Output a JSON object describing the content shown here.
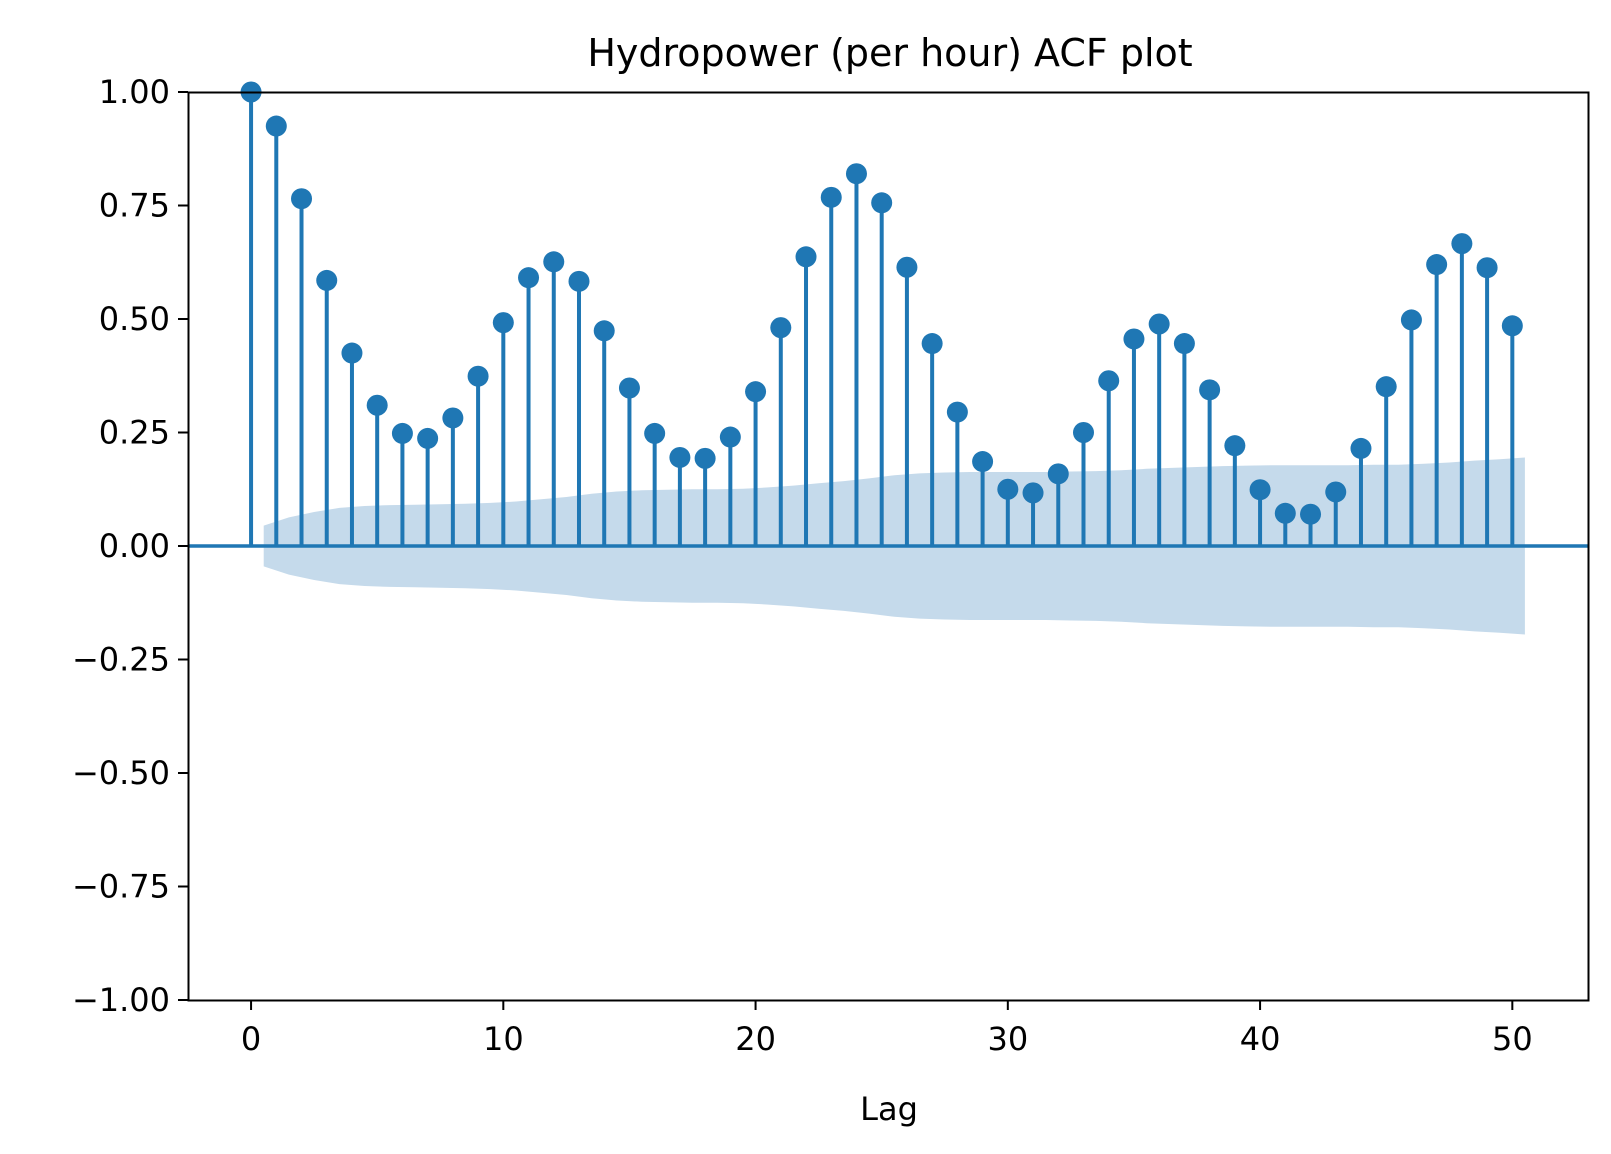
{
  "chart_data": {
    "type": "stem",
    "title": "Hydropower (per hour) ACF plot",
    "xlabel": "Lag",
    "ylabel": "",
    "xlim": [
      -2.5,
      53
    ],
    "ylim": [
      -1.0,
      1.0
    ],
    "x_ticks": [
      0,
      10,
      20,
      30,
      40,
      50
    ],
    "x_tick_labels": [
      "0",
      "10",
      "20",
      "30",
      "40",
      "50"
    ],
    "y_ticks": [
      1.0,
      0.75,
      0.5,
      0.25,
      0.0,
      -0.25,
      -0.5,
      -0.75,
      -1.0
    ],
    "y_tick_labels": [
      "1.00",
      "0.75",
      "0.50",
      "0.25",
      "0.00",
      "−0.25",
      "−0.50",
      "−0.75",
      "−1.00"
    ],
    "grid": false,
    "color": "#1f77b4",
    "band_color": "#c5daeb",
    "lags": [
      0,
      1,
      2,
      3,
      4,
      5,
      6,
      7,
      8,
      9,
      10,
      11,
      12,
      13,
      14,
      15,
      16,
      17,
      18,
      19,
      20,
      21,
      22,
      23,
      24,
      25,
      26,
      27,
      28,
      29,
      30,
      31,
      32,
      33,
      34,
      35,
      36,
      37,
      38,
      39,
      40,
      41,
      42,
      43,
      44,
      45,
      46,
      47,
      48,
      49,
      50
    ],
    "values": [
      1.0,
      0.925,
      0.765,
      0.585,
      0.425,
      0.31,
      0.248,
      0.237,
      0.282,
      0.374,
      0.492,
      0.591,
      0.626,
      0.583,
      0.474,
      0.348,
      0.248,
      0.195,
      0.193,
      0.24,
      0.34,
      0.481,
      0.637,
      0.768,
      0.82,
      0.756,
      0.614,
      0.446,
      0.295,
      0.186,
      0.125,
      0.117,
      0.159,
      0.25,
      0.364,
      0.456,
      0.489,
      0.446,
      0.344,
      0.221,
      0.124,
      0.072,
      0.07,
      0.119,
      0.215,
      0.351,
      0.498,
      0.62,
      0.666,
      0.613,
      0.485
    ],
    "confidence_band": {
      "lags": [
        0.5,
        1.5,
        2.5,
        3.5,
        4.5,
        5.5,
        6.5,
        7.5,
        8.5,
        9.5,
        10.5,
        11.5,
        12.5,
        13.5,
        14.5,
        15.5,
        16.5,
        17.5,
        18.5,
        19.5,
        20.5,
        21.5,
        22.5,
        23.5,
        24.5,
        25.5,
        26.5,
        27.5,
        28.5,
        29.5,
        30.5,
        31.5,
        32.5,
        33.5,
        34.5,
        35.5,
        36.5,
        37.5,
        38.5,
        39.5,
        40.5,
        41.5,
        42.5,
        43.5,
        44.5,
        45.5,
        46.5,
        47.5,
        48.5,
        49.5,
        50.5
      ],
      "upper": [
        0.045,
        0.063,
        0.075,
        0.084,
        0.088,
        0.09,
        0.091,
        0.092,
        0.093,
        0.095,
        0.098,
        0.103,
        0.108,
        0.115,
        0.12,
        0.123,
        0.124,
        0.125,
        0.125,
        0.126,
        0.129,
        0.133,
        0.138,
        0.143,
        0.149,
        0.156,
        0.16,
        0.162,
        0.163,
        0.163,
        0.163,
        0.163,
        0.164,
        0.165,
        0.167,
        0.17,
        0.172,
        0.174,
        0.176,
        0.177,
        0.178,
        0.178,
        0.178,
        0.178,
        0.179,
        0.179,
        0.181,
        0.184,
        0.188,
        0.191,
        0.195
      ]
    }
  }
}
